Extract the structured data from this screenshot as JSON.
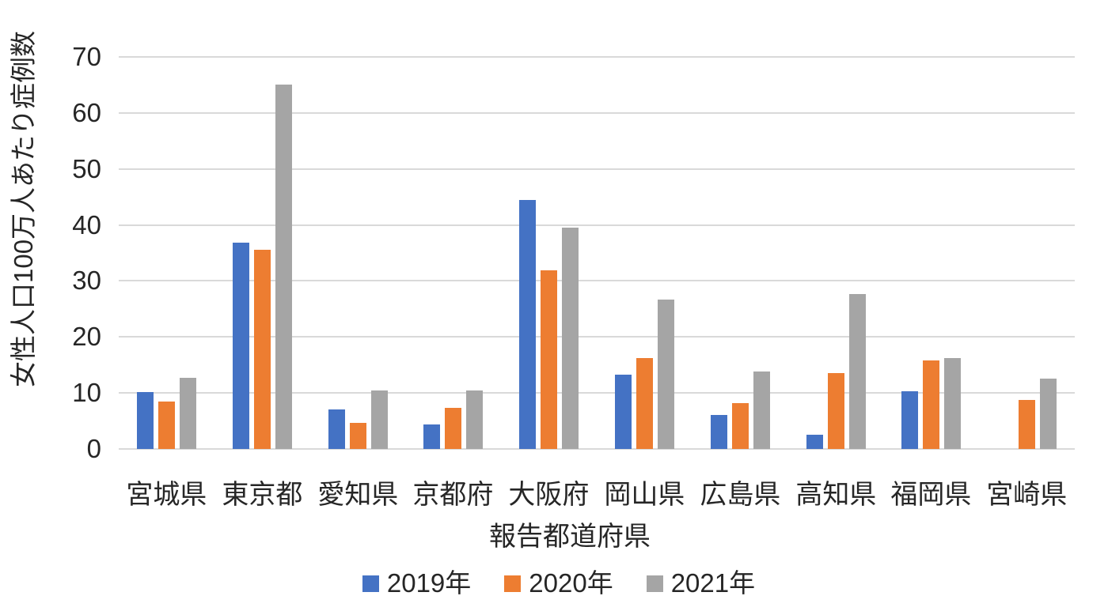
{
  "chart_data": {
    "type": "bar",
    "title": "",
    "categories": [
      "宮城県",
      "東京都",
      "愛知県",
      "京都府",
      "大阪府",
      "岡山県",
      "広島県",
      "高知県",
      "福岡県",
      "宮崎県"
    ],
    "series": [
      {
        "name": "2019年",
        "color": "#4472C4",
        "values": [
          10.1,
          36.9,
          7.0,
          4.4,
          44.5,
          13.2,
          6.1,
          2.6,
          10.3,
          null
        ]
      },
      {
        "name": "2020年",
        "color": "#ED7D31",
        "values": [
          8.4,
          35.5,
          4.7,
          7.3,
          31.9,
          16.2,
          8.2,
          13.5,
          15.8,
          8.8
        ]
      },
      {
        "name": "2021年",
        "color": "#A5A5A5",
        "values": [
          12.7,
          65.0,
          10.5,
          10.4,
          39.5,
          26.7,
          13.9,
          27.6,
          16.2,
          12.5
        ]
      }
    ],
    "xlabel": "報告都道府県",
    "ylabel": "女性人口100万人あたり症例数",
    "ylim": [
      0,
      70
    ],
    "yticks": [
      0,
      10,
      20,
      30,
      40,
      50,
      60,
      70
    ],
    "grid": true,
    "legend_position": "bottom"
  },
  "style": {
    "gridline_color": "#D9D9D9",
    "axis_line_color": "#D9D9D9",
    "text_color": "#262626",
    "background": "#ffffff"
  }
}
